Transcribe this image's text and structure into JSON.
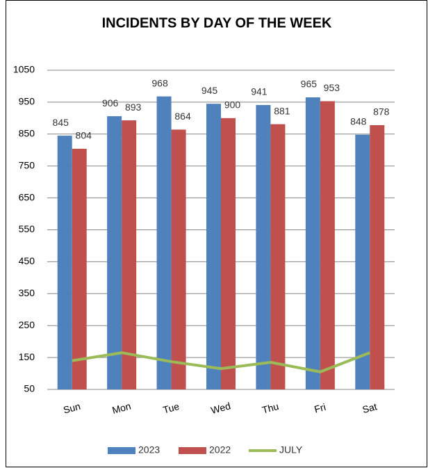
{
  "chart_data": {
    "type": "bar",
    "title": "INCIDENTS BY DAY OF THE WEEK",
    "categories": [
      "Sun",
      "Mon",
      "Tue",
      "Wed",
      "Thu",
      "Fri",
      "Sat"
    ],
    "series": [
      {
        "name": "2023",
        "color": "#4f81bd",
        "type": "bar",
        "values": [
          845,
          906,
          968,
          945,
          941,
          965,
          848
        ]
      },
      {
        "name": "2022",
        "color": "#c0504d",
        "type": "bar",
        "values": [
          804,
          893,
          864,
          900,
          881,
          953,
          878
        ]
      },
      {
        "name": "JULY",
        "color": "#9bbb59",
        "type": "line",
        "values": [
          140,
          165,
          137,
          115,
          135,
          105,
          165
        ]
      }
    ],
    "ylim": [
      50,
      1050
    ],
    "yticks": [
      50,
      150,
      250,
      350,
      450,
      550,
      650,
      750,
      850,
      950,
      1050
    ],
    "grid": true,
    "legend": "bottom"
  }
}
